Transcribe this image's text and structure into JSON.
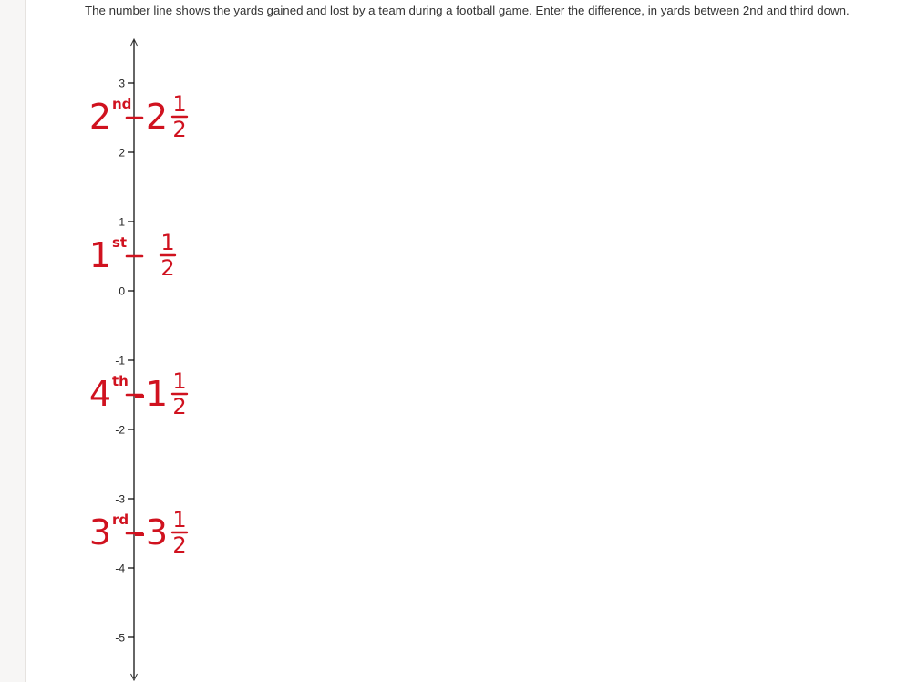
{
  "question": {
    "text": "The number line shows the yards gained and lost by a team during a football game. Enter the difference, in yards between 2nd and third down."
  },
  "number_line": {
    "orientation": "vertical",
    "range": [
      -5,
      3
    ],
    "ticks": [
      3,
      2,
      1,
      0,
      -1,
      -2,
      -3,
      -4,
      -5
    ],
    "tick_labels": [
      "3",
      "2",
      "1",
      "0",
      "-1",
      "-2",
      "-3",
      "-4",
      "-5"
    ],
    "arrows": [
      "up-arrow-icon",
      "down-arrow-icon"
    ]
  },
  "annotations": [
    {
      "down": "2",
      "suffix": "nd",
      "value": 2.5,
      "whole": "2",
      "numerator": "1",
      "denominator": "2"
    },
    {
      "down": "1",
      "suffix": "st",
      "value": 0.5,
      "whole": "",
      "numerator": "1",
      "denominator": "2"
    },
    {
      "down": "4",
      "suffix": "th",
      "value": -1.5,
      "whole": "-1",
      "numerator": "1",
      "denominator": "2"
    },
    {
      "down": "3",
      "suffix": "rd",
      "value": -3.5,
      "whole": "-3",
      "numerator": "1",
      "denominator": "2"
    }
  ],
  "colors": {
    "annotation": "#d0121f",
    "axis": "#000000",
    "text": "#333333"
  }
}
